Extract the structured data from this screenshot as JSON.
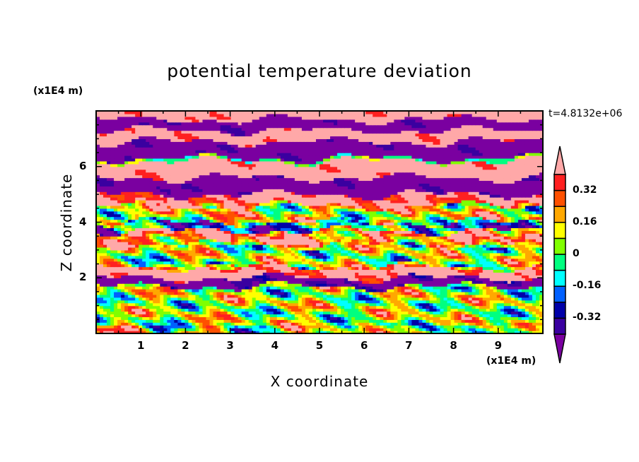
{
  "chart_data": {
    "type": "heatmap",
    "title": "potential temperature deviation",
    "xlabel": "X coordinate",
    "ylabel": "Z coordinate",
    "x_unit": "(x1E4 m)",
    "y_unit": "(x1E4 m)",
    "time_label": "t=4.8132e+06",
    "xlim": [
      0,
      10
    ],
    "ylim": [
      0,
      8
    ],
    "x_ticks": [
      "1",
      "2",
      "3",
      "4",
      "5",
      "6",
      "7",
      "8",
      "9"
    ],
    "y_ticks": [
      "2",
      "4",
      "6"
    ],
    "x_tick_values": [
      1,
      2,
      3,
      4,
      5,
      6,
      7,
      8,
      9
    ],
    "y_tick_values": [
      2,
      4,
      6
    ],
    "colorbar": {
      "levels": [
        -0.4,
        -0.32,
        -0.24,
        -0.16,
        -0.08,
        0,
        0.08,
        0.16,
        0.24,
        0.32,
        0.4
      ],
      "colors": [
        "#3a00a0",
        "#0000a8",
        "#0060ff",
        "#00ffff",
        "#00ff80",
        "#80ff00",
        "#ffff00",
        "#ffa800",
        "#ff5000",
        "#ff2020"
      ],
      "under_color": "#7a00a0",
      "over_color": "#ffa8a8",
      "labels": [
        "0.32",
        "0.16",
        "0",
        "-0.16",
        "-0.32"
      ],
      "label_values": [
        0.32,
        0.16,
        0,
        -0.16,
        -0.32
      ]
    },
    "layers_approx": [
      {
        "z": [
          7.7,
          8.0
        ],
        "value": 0.5
      },
      {
        "z": [
          7.3,
          7.7
        ],
        "value": -0.5
      },
      {
        "z": [
          6.9,
          7.3
        ],
        "value": 0.5
      },
      {
        "z": [
          6.3,
          6.9
        ],
        "value": -0.5
      },
      {
        "z": [
          6.2,
          6.3
        ],
        "value": 0.0
      },
      {
        "z": [
          5.6,
          6.2
        ],
        "value": 0.5
      },
      {
        "z": [
          5.0,
          5.6
        ],
        "value": -0.5
      },
      {
        "z": [
          4.6,
          5.0
        ],
        "value": 0.42
      },
      {
        "z": [
          4.0,
          4.6
        ],
        "value": 0.12
      },
      {
        "z": [
          3.7,
          4.0
        ],
        "value": -0.2
      },
      {
        "z": [
          3.2,
          3.7
        ],
        "value": 0.3
      },
      {
        "z": [
          2.4,
          3.2
        ],
        "value": 0.05
      },
      {
        "z": [
          2.0,
          2.4
        ],
        "value": 0.45
      },
      {
        "z": [
          1.7,
          2.0
        ],
        "value": -0.45
      },
      {
        "z": [
          0.0,
          1.7
        ],
        "value": 0.06
      }
    ]
  }
}
